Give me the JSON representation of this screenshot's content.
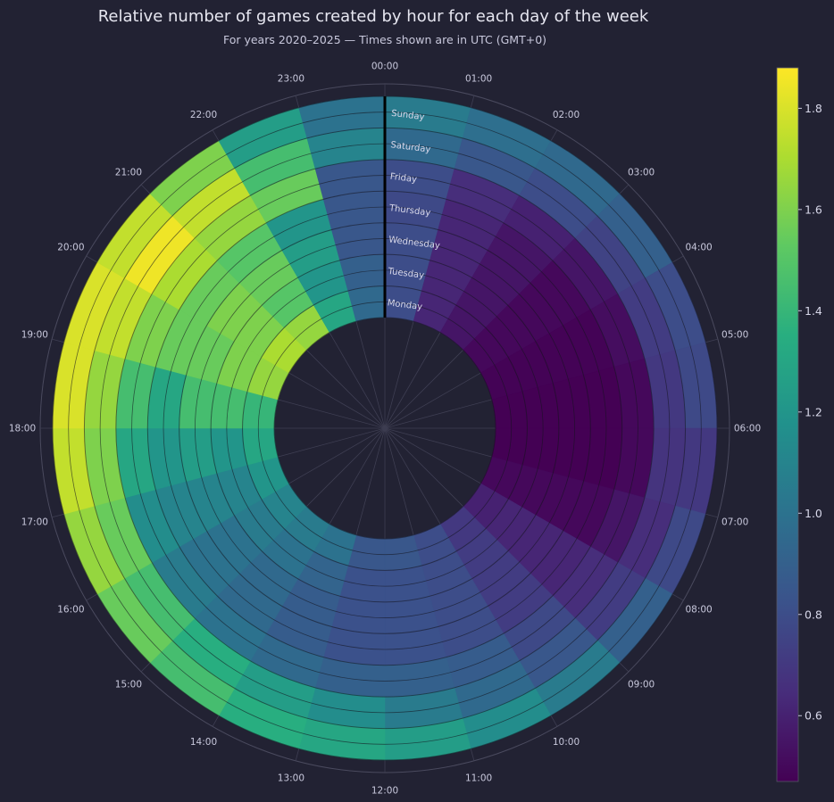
{
  "chart_data": {
    "type": "heatmap",
    "subtype": "polar",
    "title": "Relative number of games created by hour for each day of the week",
    "subtitle": "For years 2020–2025 — Times shown are in UTC (GMT+0)",
    "hours": [
      "00:00",
      "01:00",
      "02:00",
      "03:00",
      "04:00",
      "05:00",
      "06:00",
      "07:00",
      "08:00",
      "09:00",
      "10:00",
      "11:00",
      "12:00",
      "13:00",
      "14:00",
      "15:00",
      "16:00",
      "17:00",
      "18:00",
      "19:00",
      "20:00",
      "21:00",
      "22:00",
      "23:00"
    ],
    "days": [
      "Monday",
      "Tuesday",
      "Wednesday",
      "Thursday",
      "Friday",
      "Saturday",
      "Sunday"
    ],
    "values": [
      [
        0.8,
        0.62,
        0.55,
        0.5,
        0.48,
        0.47,
        0.47,
        0.5,
        0.6,
        0.7,
        0.8,
        0.85,
        0.85,
        1.0,
        1.05,
        1.1,
        1.2,
        1.3,
        1.4,
        1.65,
        1.7,
        1.65,
        1.3,
        0.95
      ],
      [
        0.8,
        0.62,
        0.55,
        0.5,
        0.48,
        0.47,
        0.47,
        0.5,
        0.62,
        0.72,
        0.8,
        0.82,
        0.82,
        0.92,
        1.0,
        1.05,
        1.1,
        1.2,
        1.45,
        1.6,
        1.6,
        1.5,
        1.2,
        0.9
      ],
      [
        0.8,
        0.62,
        0.55,
        0.5,
        0.48,
        0.47,
        0.47,
        0.5,
        0.62,
        0.72,
        0.8,
        0.82,
        0.82,
        0.88,
        0.95,
        1.0,
        1.1,
        1.25,
        1.45,
        1.55,
        1.6,
        1.55,
        1.25,
        0.85
      ],
      [
        0.78,
        0.62,
        0.55,
        0.5,
        0.48,
        0.47,
        0.47,
        0.5,
        0.62,
        0.72,
        0.8,
        0.82,
        0.82,
        0.88,
        0.95,
        1.0,
        1.1,
        1.2,
        1.3,
        1.55,
        1.55,
        1.5,
        1.2,
        0.85
      ],
      [
        0.8,
        0.65,
        0.6,
        0.55,
        0.52,
        0.5,
        0.5,
        0.55,
        0.65,
        0.78,
        0.88,
        0.9,
        0.9,
        0.95,
        1.0,
        1.05,
        1.15,
        1.3,
        1.45,
        1.6,
        1.7,
        1.65,
        1.55,
        0.85
      ],
      [
        0.95,
        0.85,
        0.8,
        0.75,
        0.72,
        0.7,
        0.68,
        0.65,
        0.72,
        0.85,
        0.95,
        1.05,
        1.15,
        1.25,
        1.35,
        1.45,
        1.55,
        1.6,
        1.65,
        1.75,
        1.85,
        1.75,
        1.45,
        1.1
      ],
      [
        1.05,
        0.98,
        0.95,
        0.9,
        0.8,
        0.78,
        0.7,
        0.78,
        0.9,
        1.05,
        1.15,
        1.25,
        1.3,
        1.35,
        1.45,
        1.55,
        1.65,
        1.75,
        1.8,
        1.8,
        1.75,
        1.6,
        1.25,
        1.0
      ]
    ],
    "colorbar": {
      "colormap": "viridis",
      "range": [
        0.47,
        1.88
      ],
      "ticks": [
        "0.6",
        "0.8",
        "1.0",
        "1.2",
        "1.4",
        "1.6",
        "1.8"
      ]
    }
  }
}
